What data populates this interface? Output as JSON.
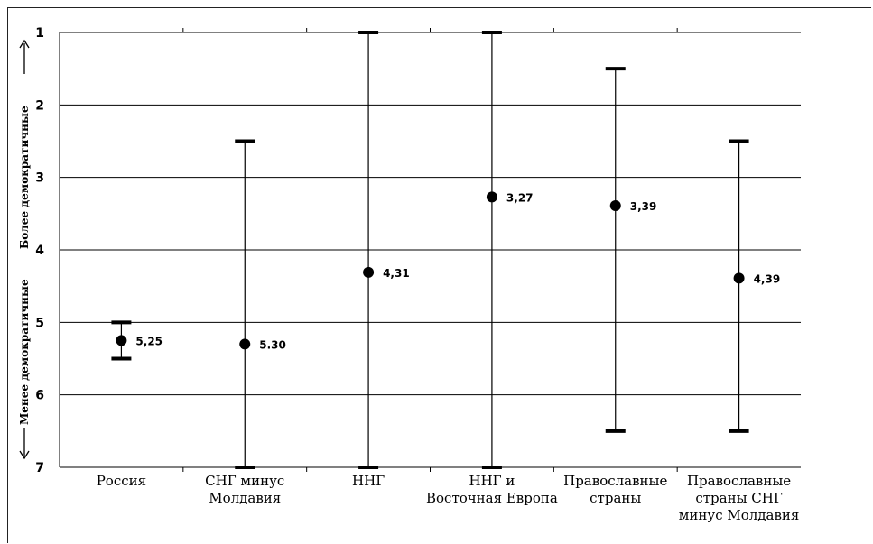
{
  "chart_data": {
    "type": "errorbar",
    "categories": [
      [
        "Россия"
      ],
      [
        "СНГ минус",
        "Молдавия"
      ],
      [
        "ННГ"
      ],
      [
        "ННГ и",
        "Восточная Европа"
      ],
      [
        "Православные",
        "страны"
      ],
      [
        "Православные",
        "страны СНГ",
        "минус Молдавия"
      ]
    ],
    "points": [
      {
        "mean": 5.25,
        "label": "5,25",
        "min": 5.0,
        "max": 5.5
      },
      {
        "mean": 5.3,
        "label": "5.30",
        "min": 2.5,
        "max": 7.0
      },
      {
        "mean": 4.31,
        "label": "4,31",
        "min": 1.0,
        "max": 7.0
      },
      {
        "mean": 3.27,
        "label": "3,27",
        "min": 1.0,
        "max": 7.0
      },
      {
        "mean": 3.39,
        "label": "3,39",
        "min": 1.5,
        "max": 6.5
      },
      {
        "mean": 4.39,
        "label": "4,39",
        "min": 2.5,
        "max": 6.5
      }
    ],
    "ylim": [
      1,
      7
    ],
    "yaxis_inverted": true,
    "yticks": [
      1,
      2,
      3,
      4,
      5,
      6,
      7
    ],
    "ylabel_top": "Более демократичные",
    "ylabel_bottom": "Менее демократичные",
    "grid": true
  }
}
